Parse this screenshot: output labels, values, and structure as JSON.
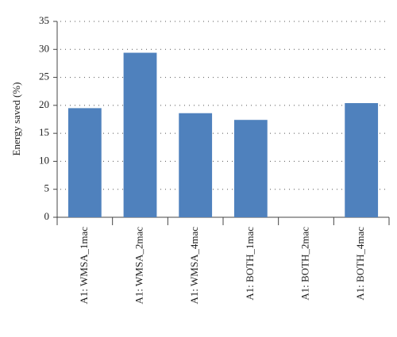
{
  "chart_data": {
    "type": "bar",
    "y_label": "Energy saved (%)",
    "categories": [
      "A1: WMSA_1mac",
      "A1: WMSA_2mac",
      "A1: WMSA_4mac",
      "A1: BOTH_1mac",
      "A1: BOTH_2mac",
      "A1: BOTH_4mac"
    ],
    "values": [
      19.5,
      29.4,
      18.6,
      17.4,
      0,
      20.4
    ],
    "color": "#4f81bd",
    "ylim": [
      0,
      35
    ],
    "yticks": [
      0,
      5,
      10,
      15,
      20,
      25,
      30,
      35
    ],
    "grid": true
  }
}
